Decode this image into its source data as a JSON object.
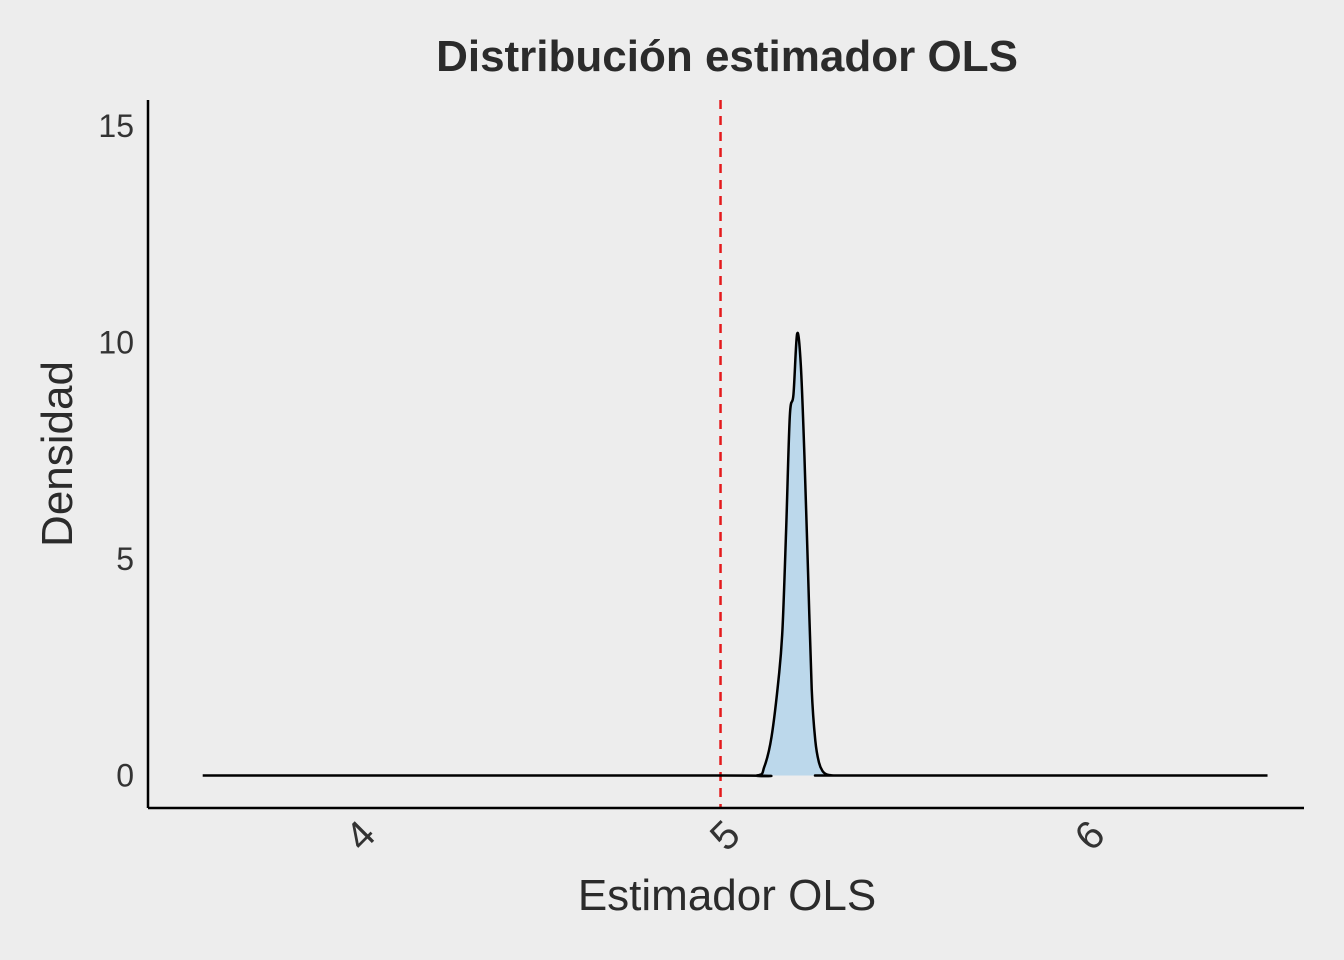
{
  "chart_data": {
    "type": "area",
    "title": "Distribución estimador OLS",
    "xlabel": "Estimador OLS",
    "ylabel": "Densidad",
    "xlim": [
      3.43,
      6.6
    ],
    "ylim": [
      -0.75,
      15.6
    ],
    "x_ticks": [
      4,
      5,
      6
    ],
    "x_tick_labels": [
      "4",
      "5",
      "6"
    ],
    "y_ticks": [
      0,
      5,
      10,
      15
    ],
    "y_tick_labels": [
      "0",
      "5",
      "10",
      "15"
    ],
    "grid": false,
    "legend": "none",
    "fill_color": "#bcd8eb",
    "line_color": "#000000",
    "reference_line": {
      "x": 5.0,
      "color": "#e41a1c",
      "style": "dashed"
    },
    "series": [
      {
        "x": [
          3.58,
          5.0,
          5.1,
          5.12,
          5.14,
          5.16,
          5.17,
          5.18,
          5.19,
          5.2,
          5.21,
          5.22,
          5.23,
          5.24,
          5.25,
          5.26,
          5.27,
          5.28,
          5.29,
          5.3,
          5.31,
          5.32,
          5.33,
          5.35,
          6.5
        ],
        "y": [
          0,
          0,
          0,
          0.2,
          0.9,
          2.3,
          3.4,
          5.7,
          8.3,
          8.8,
          10.2,
          9.5,
          7.4,
          4.7,
          2.0,
          0.8,
          0.3,
          0.1,
          0.03,
          0.01,
          0.0,
          0.0,
          0.0,
          0.0,
          0.0
        ]
      }
    ]
  }
}
